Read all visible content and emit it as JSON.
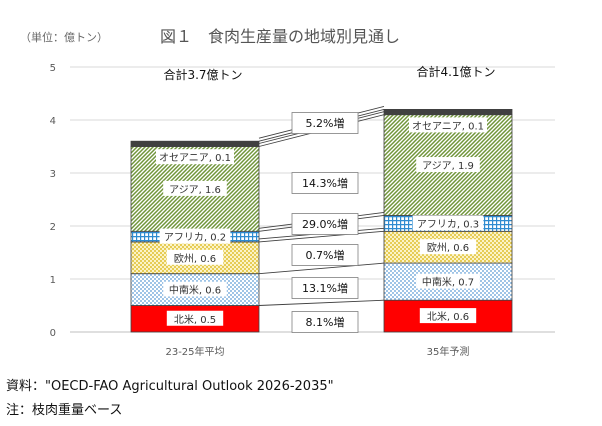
{
  "figure": {
    "unit": "（単位：億トン）",
    "title": "図１　食肉生産量の地域別見通し",
    "source": "資料：\"OECD-FAO Agricultural Outlook 2026-2035\"",
    "note": "注：枝肉重量ベース"
  },
  "chart_data": {
    "type": "bar",
    "stacked": true,
    "title": "図１　食肉生産量の地域別見通し",
    "ylabel": "（単位：億トン）",
    "ylim": [
      0,
      5
    ],
    "yticks": [
      "0",
      "1",
      "2",
      "3",
      "4",
      "5"
    ],
    "grid": true,
    "categories": [
      "23-25年平均",
      "35年予測"
    ],
    "totals": [
      "合計3.7億トン",
      "合計4.1億トン"
    ],
    "series": [
      {
        "name": "北米",
        "values": [
          0.5,
          0.6
        ],
        "labels": [
          "北米, 0.5",
          "北米, 0.6"
        ],
        "color": "#ff0000",
        "pattern": "solid"
      },
      {
        "name": "中南米",
        "values": [
          0.6,
          0.7
        ],
        "labels": [
          "中南米, 0.6",
          "中南米, 0.7"
        ],
        "color": "#5b9bd5",
        "pattern": "dots"
      },
      {
        "name": "欧州",
        "values": [
          0.6,
          0.6
        ],
        "labels": [
          "欧州, 0.6",
          "欧州, 0.6"
        ],
        "color": "#e6c845",
        "pattern": "dots"
      },
      {
        "name": "アフリカ",
        "values": [
          0.2,
          0.3
        ],
        "labels": [
          "アフリカ, 0.2",
          "アフリカ, 0.3"
        ],
        "color": "#2e8bd0",
        "pattern": "grid"
      },
      {
        "name": "アジア",
        "values": [
          1.6,
          1.9
        ],
        "labels": [
          "アジア, 1.6",
          "アジア, 1.9"
        ],
        "color": "#70953a",
        "pattern": "diagonal"
      },
      {
        "name": "オセアニア",
        "values": [
          0.1,
          0.1
        ],
        "labels": [
          "オセアニア, 0.1",
          "オセアニア, 0.1"
        ],
        "color": "#404040",
        "pattern": "solid"
      }
    ],
    "growth_labels": [
      "8.1%増",
      "13.1%増",
      "0.7%増",
      "29.0%増",
      "14.3%増",
      "5.2%増"
    ]
  }
}
